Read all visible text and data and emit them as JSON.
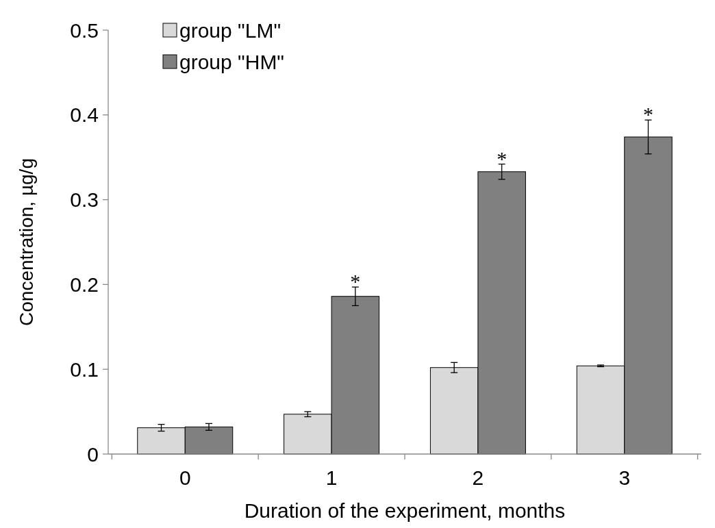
{
  "chart_data": {
    "type": "bar",
    "xlabel": "Duration of the experiment, months",
    "ylabel": "Concentration, µg/g",
    "categories": [
      "0",
      "1",
      "2",
      "3"
    ],
    "series": [
      {
        "name": "group \"LM\"",
        "color": "#d9d9d9",
        "values": [
          0.031,
          0.047,
          0.102,
          0.104
        ],
        "errors": [
          0.004,
          0.003,
          0.006,
          0.001
        ]
      },
      {
        "name": "group \"HM\"",
        "color": "#808080",
        "values": [
          0.032,
          0.186,
          0.333,
          0.374
        ],
        "errors": [
          0.004,
          0.011,
          0.009,
          0.02
        ]
      }
    ],
    "ylim": [
      0,
      0.5
    ],
    "yticks": [
      0,
      0.1,
      0.2,
      0.3,
      0.4,
      0.5
    ],
    "grid": false,
    "legend": "top left",
    "annotations": [
      {
        "text": "*",
        "x": "1",
        "y": 0.186
      },
      {
        "text": "*",
        "x": "2",
        "y": 0.333
      },
      {
        "text": "*",
        "x": "3",
        "y": 0.374
      }
    ]
  }
}
